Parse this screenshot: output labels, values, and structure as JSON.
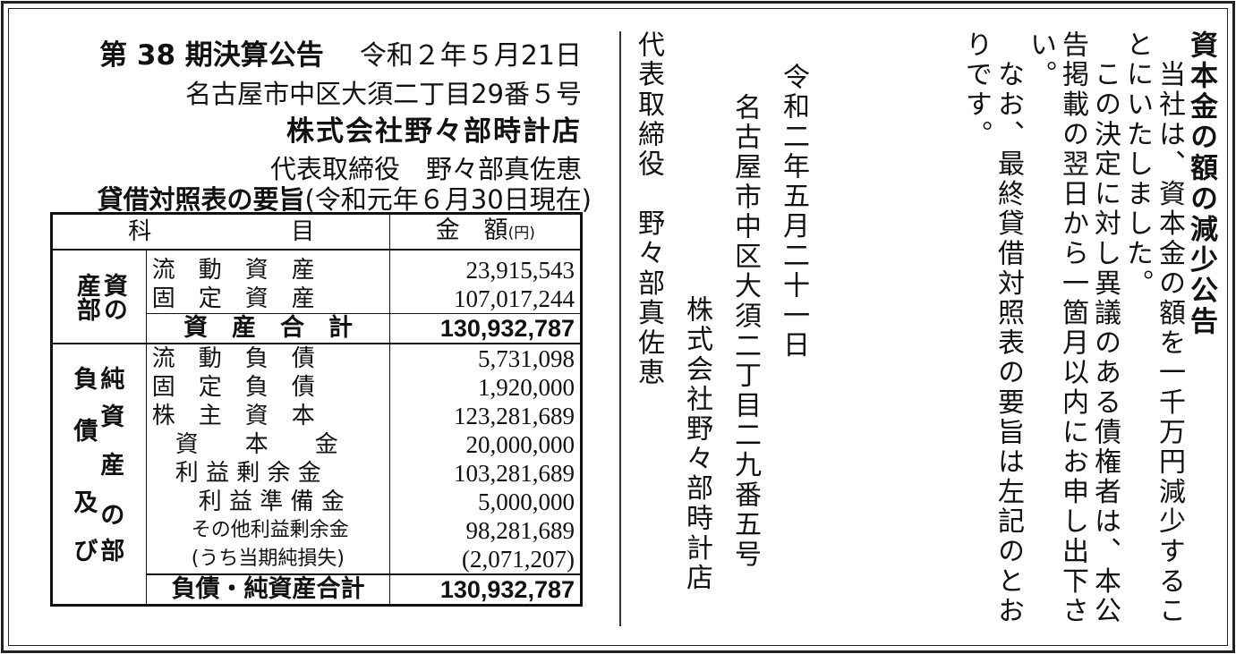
{
  "left": {
    "title": "第 38 期決算公告",
    "date": "令和２年５月21日",
    "address": "名古屋市中区大須二丁目29番５号",
    "company": "株式会社野々部時計店",
    "representative": "代表取締役　野々部真佐恵",
    "bs_title": "貸借対照表の要旨",
    "bs_date": "(令和元年６月30日現在)",
    "table": {
      "header_item": "科　　　　　　目",
      "header_amount": "金　額",
      "header_unit": "(円)",
      "assets_label": "資の産部",
      "assets_rows": [
        {
          "item": "流　動　資　産",
          "value": "23,915,543"
        },
        {
          "item": "固　定　資　産",
          "value": "107,017,244"
        }
      ],
      "assets_total": {
        "item": "資　産　合　計",
        "value": "130,932,787"
      },
      "liab_label": "負純債資産及のび部",
      "liab_rows": [
        {
          "item": "流　動　負　債",
          "value": "5,731,098"
        },
        {
          "item": "固　定　負　債",
          "value": "1,920,000"
        },
        {
          "item": "株　主　資　本",
          "value": "123,281,689"
        },
        {
          "item": "　資　　本　　金",
          "value": "20,000,000"
        },
        {
          "item": "　利 益 剰 余 金",
          "value": "103,281,689"
        },
        {
          "item": "　　利 益 準 備 金",
          "value": "5,000,000"
        },
        {
          "item": "　　その他利益剰余金",
          "value": "98,281,689"
        },
        {
          "item": "　　(うち当期純損失)",
          "value": "(2,071,207)"
        }
      ],
      "liab_total": {
        "item": "負債・純資産合計",
        "value": "130,932,787"
      }
    }
  },
  "right": {
    "title": "資本金の額の減少公告",
    "lines": [
      "　当社は、資本金の額を一千万円減少するこ",
      "とにいたしました。",
      "　この決定に対し異議のある債権者は、本公",
      "告掲載の翌日から一箇月以内にお申し出下さ",
      "い。",
      "　なお、最終貸借対照表の要旨は左記のとお",
      "りです。"
    ],
    "date": "令和二年五月二十一日",
    "address": "名古屋市中区大須二丁目二九番五号",
    "company": "株式会社野々部時計店",
    "representative": "代表取締役　野々部真佐恵"
  }
}
